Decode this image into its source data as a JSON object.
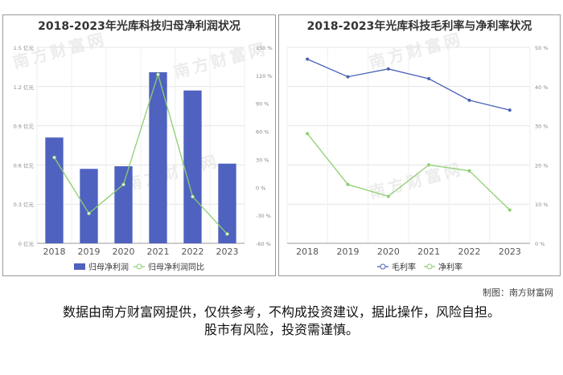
{
  "watermark": "南方财富网",
  "credit": "制图：南方财富网",
  "disclaimer": {
    "line1": "数据由南方财富网提供，仅供参考，不构成投资建议，据此操作，风险自担。",
    "line2": "股市有风险，投资需谨慎。"
  },
  "chart_data": [
    {
      "type": "bar",
      "title": "2018-2023年光库科技归母净利润状况",
      "categories": [
        "2018",
        "2019",
        "2020",
        "2021",
        "2022",
        "2023"
      ],
      "series": [
        {
          "name": "归母净利润",
          "type": "bar",
          "axis": "left",
          "color": "#4f62c0",
          "values": [
            0.81,
            0.57,
            0.59,
            1.31,
            1.17,
            0.61
          ]
        },
        {
          "name": "归母净利润同比",
          "type": "line",
          "axis": "right",
          "color": "#8ccf6f",
          "values": [
            32,
            -28,
            3,
            121,
            -10,
            -50
          ]
        }
      ],
      "y_left": {
        "min": 0,
        "max": 1.5,
        "ticks": [
          "0 亿元",
          "0.3 亿元",
          "0.6 亿元",
          "0.9 亿元",
          "1.2 亿元",
          "1.5 亿元"
        ]
      },
      "y_right": {
        "min": -60,
        "max": 150,
        "ticks": [
          "-60 %",
          "-30 %",
          "0 %",
          "30 %",
          "60 %",
          "90 %",
          "120 %",
          "150 %"
        ]
      },
      "legend": "bottom-center",
      "grid": true
    },
    {
      "type": "line",
      "title": "2018-2023年光库科技毛利率与净利率状况",
      "categories": [
        "2018",
        "2019",
        "2020",
        "2021",
        "2022",
        "2023"
      ],
      "series": [
        {
          "name": "毛利率",
          "color": "#4b63b8",
          "values": [
            47,
            42.5,
            44.5,
            42,
            36.5,
            34
          ]
        },
        {
          "name": "净利率",
          "color": "#8ccf6f",
          "values": [
            28,
            15,
            12,
            20,
            18.5,
            8.5
          ]
        }
      ],
      "y_right": {
        "min": 0,
        "max": 50,
        "ticks": [
          "0 %",
          "10 %",
          "20 %",
          "30 %",
          "40 %",
          "50 %"
        ]
      },
      "legend": "bottom-center",
      "grid": true
    }
  ]
}
